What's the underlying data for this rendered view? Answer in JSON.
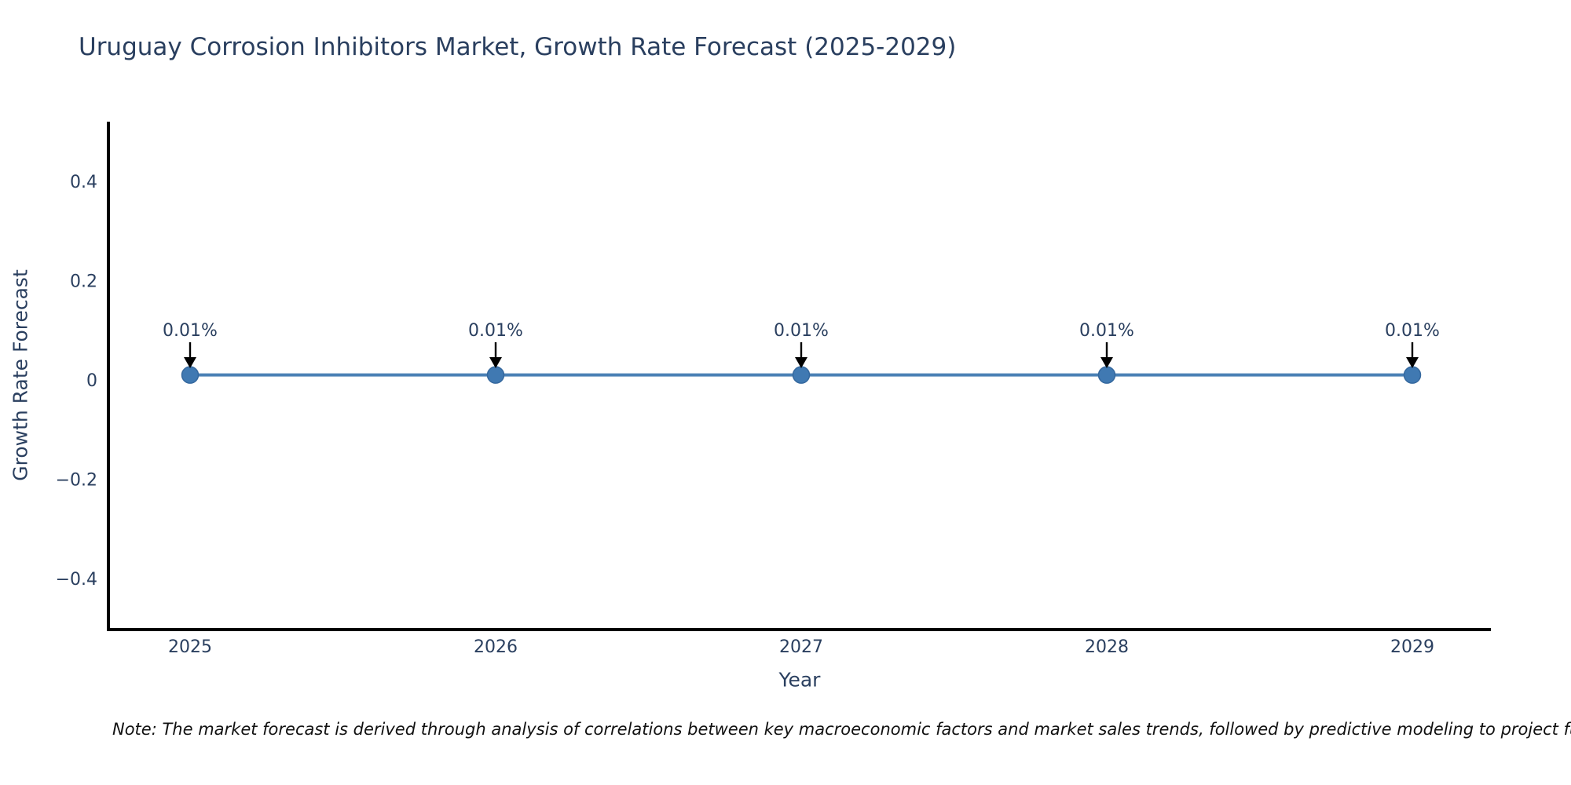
{
  "note": "Note: The market forecast is derived through analysis of correlations between key macroeconomic factors and market sales trends, followed by predictive modeling to project future sales.",
  "chart_data": {
    "type": "line",
    "title": "Uruguay Corrosion Inhibitors Market, Growth Rate Forecast (2025-2029)",
    "xlabel": "Year",
    "ylabel": "Growth Rate Forecast",
    "categories": [
      "2025",
      "2026",
      "2027",
      "2028",
      "2029"
    ],
    "values": [
      0.01,
      0.01,
      0.01,
      0.01,
      0.01
    ],
    "point_labels": [
      "0.01%",
      "0.01%",
      "0.01%",
      "0.01%",
      "0.01%"
    ],
    "yticks": {
      "labels": [
        "0.4",
        "0.2",
        "0",
        "−0.2",
        "−0.4"
      ],
      "values": [
        0.4,
        0.2,
        0,
        -0.2,
        -0.4
      ]
    },
    "ylim": [
      -0.5,
      0.52
    ],
    "grid": false,
    "legend": "none",
    "colors": {
      "line": "#4a80b5",
      "marker_fill": "#4079b2",
      "marker_edge": "#35689e",
      "axis": "#000000",
      "text": "#2a3f5f",
      "annotation_arrow": "#000000",
      "background": "#ffffff"
    }
  }
}
